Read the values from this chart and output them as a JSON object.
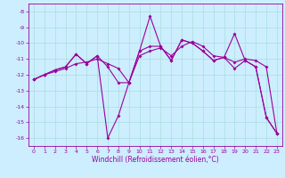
{
  "xlabel": "Windchill (Refroidissement éolien,°C)",
  "x_values": [
    0,
    1,
    2,
    3,
    4,
    5,
    6,
    7,
    8,
    9,
    10,
    11,
    12,
    13,
    14,
    15,
    16,
    17,
    18,
    19,
    20,
    21,
    22,
    23
  ],
  "line1": [
    -12.3,
    -12.0,
    -11.8,
    -11.6,
    -11.3,
    -11.2,
    -11.0,
    -11.3,
    -11.6,
    -12.5,
    -10.8,
    -10.5,
    -10.3,
    -10.8,
    -10.2,
    -9.9,
    -10.2,
    -10.8,
    -10.9,
    -11.2,
    -11.0,
    -11.1,
    -11.5,
    -15.7
  ],
  "line2": [
    -12.3,
    -12.0,
    -11.7,
    -11.5,
    -10.7,
    -11.3,
    -10.8,
    -16.0,
    -14.6,
    -12.5,
    -10.5,
    -8.3,
    -10.2,
    -11.1,
    -9.8,
    -10.0,
    -10.5,
    -11.1,
    -10.9,
    -9.4,
    -11.1,
    -11.5,
    -14.7,
    -15.7
  ],
  "line3": [
    -12.3,
    -12.0,
    -11.7,
    -11.5,
    -10.7,
    -11.3,
    -10.8,
    -11.5,
    -12.5,
    -12.5,
    -10.5,
    -10.2,
    -10.2,
    -11.1,
    -9.8,
    -10.0,
    -10.5,
    -11.1,
    -10.9,
    -11.6,
    -11.1,
    -11.5,
    -14.7,
    -15.7
  ],
  "ylim": [
    -16.5,
    -7.5
  ],
  "xlim": [
    -0.5,
    23.5
  ],
  "yticks": [
    -8,
    -9,
    -10,
    -11,
    -12,
    -13,
    -14,
    -15,
    -16
  ],
  "xticks": [
    0,
    1,
    2,
    3,
    4,
    5,
    6,
    7,
    8,
    9,
    10,
    11,
    12,
    13,
    14,
    15,
    16,
    17,
    18,
    19,
    20,
    21,
    22,
    23
  ],
  "line_color": "#9b009b",
  "marker": "D",
  "marker_size": 2,
  "bg_color": "#cceeff",
  "grid_color": "#aadddd",
  "tick_fontsize": 4.5,
  "xlabel_fontsize": 5.5
}
